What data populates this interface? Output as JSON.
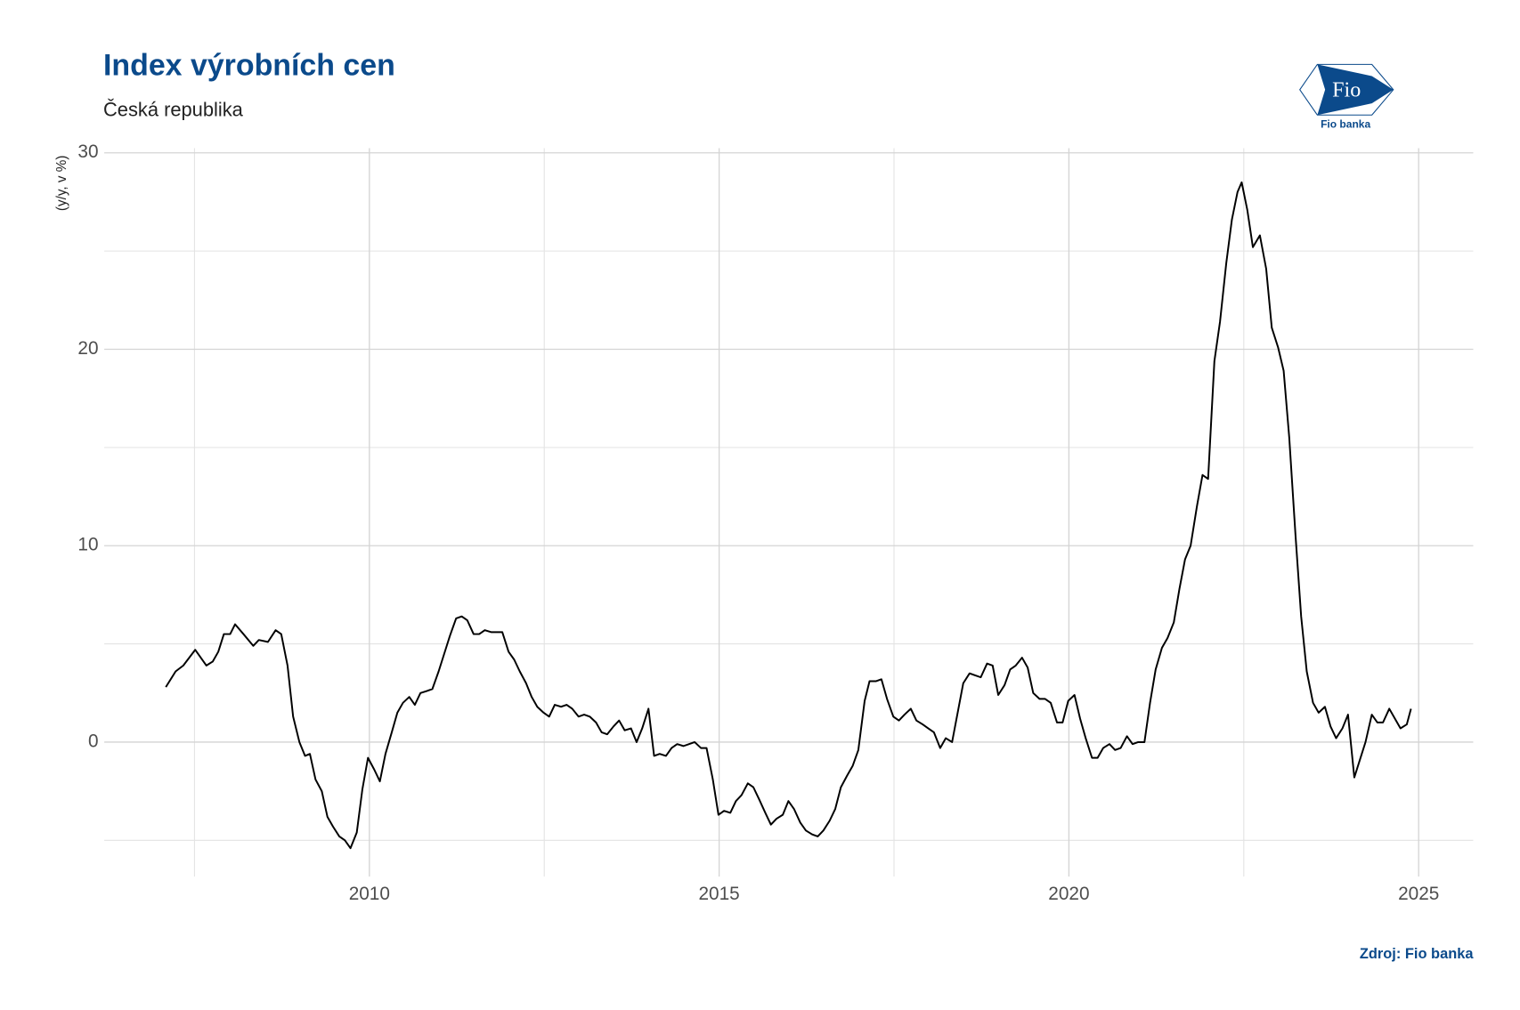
{
  "chart_data": {
    "type": "line",
    "title": "Index výrobních cen",
    "subtitle": "Česká republika",
    "y_label": "(y/y, v %)",
    "source": "Zdroj: Fio banka",
    "color": "#000000",
    "grid": true,
    "minor_grid": true,
    "xlim": [
      2006.21,
      2025.78
    ],
    "xticks": [
      2010,
      2015,
      2020,
      2025
    ],
    "ylim": [
      -6.84,
      30.24
    ],
    "yticks": [
      0,
      10,
      20,
      30
    ],
    "x": [
      2007.09,
      2007.23,
      2007.34,
      2007.51,
      2007.67,
      2007.76,
      2007.84,
      2007.92,
      2008.01,
      2008.08,
      2008.2,
      2008.34,
      2008.42,
      2008.55,
      2008.66,
      2008.74,
      2008.83,
      2008.91,
      2009.0,
      2009.08,
      2009.15,
      2009.23,
      2009.32,
      2009.4,
      2009.48,
      2009.57,
      2009.65,
      2009.73,
      2009.82,
      2009.9,
      2009.98,
      2010.07,
      2010.15,
      2010.23,
      2010.32,
      2010.4,
      2010.48,
      2010.57,
      2010.65,
      2010.73,
      2010.82,
      2010.9,
      2010.99,
      2011.07,
      2011.15,
      2011.24,
      2011.32,
      2011.4,
      2011.49,
      2011.57,
      2011.65,
      2011.74,
      2011.82,
      2011.9,
      2011.99,
      2012.07,
      2012.15,
      2012.24,
      2012.32,
      2012.4,
      2012.49,
      2012.57,
      2012.65,
      2012.74,
      2012.82,
      2012.9,
      2012.99,
      2013.07,
      2013.15,
      2013.24,
      2013.32,
      2013.4,
      2013.49,
      2013.57,
      2013.65,
      2013.74,
      2013.82,
      2013.9,
      2013.99,
      2014.07,
      2014.15,
      2014.24,
      2014.32,
      2014.4,
      2014.49,
      2014.57,
      2014.65,
      2014.74,
      2014.82,
      2014.91,
      2014.99,
      2015.07,
      2015.16,
      2015.24,
      2015.32,
      2015.41,
      2015.49,
      2015.57,
      2015.66,
      2015.74,
      2015.82,
      2015.91,
      2015.99,
      2016.07,
      2016.16,
      2016.24,
      2016.33,
      2016.41,
      2016.49,
      2016.58,
      2016.66,
      2016.74,
      2016.83,
      2016.91,
      2016.99,
      2017.08,
      2017.15,
      2017.24,
      2017.32,
      2017.4,
      2017.49,
      2017.57,
      2017.65,
      2017.74,
      2017.82,
      2017.91,
      2017.99,
      2018.07,
      2018.16,
      2018.24,
      2018.33,
      2018.41,
      2018.49,
      2018.58,
      2018.66,
      2018.74,
      2018.83,
      2018.91,
      2018.99,
      2019.08,
      2019.16,
      2019.24,
      2019.33,
      2019.41,
      2019.49,
      2019.58,
      2019.66,
      2019.74,
      2019.83,
      2019.91,
      2019.99,
      2020.08,
      2020.16,
      2020.24,
      2020.33,
      2020.41,
      2020.49,
      2020.58,
      2020.66,
      2020.74,
      2020.83,
      2020.91,
      2020.99,
      2021.08,
      2021.16,
      2021.24,
      2021.33,
      2021.41,
      2021.5,
      2021.58,
      2021.66,
      2021.74,
      2021.83,
      2021.91,
      2021.99,
      2022.08,
      2022.16,
      2022.25,
      2022.33,
      2022.41,
      2022.47,
      2022.55,
      2022.63,
      2022.73,
      2022.82,
      2022.9,
      2022.99,
      2023.07,
      2023.15,
      2023.24,
      2023.32,
      2023.4,
      2023.49,
      2023.57,
      2023.66,
      2023.74,
      2023.82,
      2023.91,
      2023.99,
      2024.08,
      2024.16,
      2024.24,
      2024.33,
      2024.41,
      2024.49,
      2024.58,
      2024.66,
      2024.74,
      2024.83,
      2024.89
    ],
    "values": [
      2.8,
      3.6,
      3.9,
      4.7,
      3.9,
      4.1,
      4.6,
      5.5,
      5.5,
      6.0,
      5.5,
      4.9,
      5.2,
      5.1,
      5.7,
      5.5,
      3.9,
      1.3,
      0.0,
      -0.7,
      -0.6,
      -1.9,
      -2.5,
      -3.8,
      -4.3,
      -4.8,
      -5.0,
      -5.4,
      -4.6,
      -2.4,
      -0.8,
      -1.4,
      -2.0,
      -0.6,
      0.5,
      1.5,
      2.0,
      2.3,
      1.9,
      2.5,
      2.6,
      2.7,
      3.6,
      4.5,
      5.4,
      6.3,
      6.4,
      6.2,
      5.5,
      5.5,
      5.7,
      5.6,
      5.6,
      5.6,
      4.6,
      4.2,
      3.6,
      3.0,
      2.3,
      1.8,
      1.5,
      1.3,
      1.9,
      1.8,
      1.9,
      1.7,
      1.3,
      1.4,
      1.3,
      1.0,
      0.5,
      0.4,
      0.8,
      1.1,
      0.6,
      0.7,
      0.0,
      0.7,
      1.7,
      -0.7,
      -0.6,
      -0.7,
      -0.3,
      -0.1,
      -0.2,
      -0.1,
      0.0,
      -0.3,
      -0.3,
      -1.9,
      -3.7,
      -3.5,
      -3.6,
      -3.0,
      -2.7,
      -2.1,
      -2.3,
      -2.9,
      -3.6,
      -4.2,
      -3.9,
      -3.7,
      -3.0,
      -3.4,
      -4.1,
      -4.5,
      -4.7,
      -4.8,
      -4.5,
      -4.0,
      -3.4,
      -2.3,
      -1.7,
      -1.2,
      -0.4,
      2.1,
      3.1,
      3.1,
      3.2,
      2.2,
      1.3,
      1.1,
      1.4,
      1.7,
      1.1,
      0.9,
      0.7,
      0.5,
      -0.3,
      0.2,
      0.0,
      1.5,
      3.0,
      3.5,
      3.4,
      3.3,
      4.0,
      3.9,
      2.4,
      2.9,
      3.7,
      3.9,
      4.3,
      3.8,
      2.5,
      2.2,
      2.2,
      2.0,
      1.0,
      1.0,
      2.1,
      2.4,
      1.2,
      0.2,
      -0.8,
      -0.8,
      -0.3,
      -0.1,
      -0.4,
      -0.3,
      0.3,
      -0.1,
      0.0,
      0.0,
      2.0,
      3.7,
      4.8,
      5.3,
      6.1,
      7.8,
      9.3,
      10.0,
      12.0,
      13.6,
      13.4,
      19.4,
      21.4,
      24.4,
      26.6,
      28.0,
      28.5,
      27.1,
      25.2,
      25.8,
      24.1,
      21.1,
      20.1,
      18.9,
      15.5,
      10.5,
      6.4,
      3.6,
      2.0,
      1.5,
      1.8,
      0.8,
      0.2,
      0.7,
      1.4,
      -1.8,
      -0.9,
      0.0,
      1.4,
      1.0,
      1.0,
      1.7,
      1.2,
      0.7,
      0.9,
      1.7
    ]
  },
  "logo": {
    "mark": "Fio",
    "name": "Fio banka"
  }
}
